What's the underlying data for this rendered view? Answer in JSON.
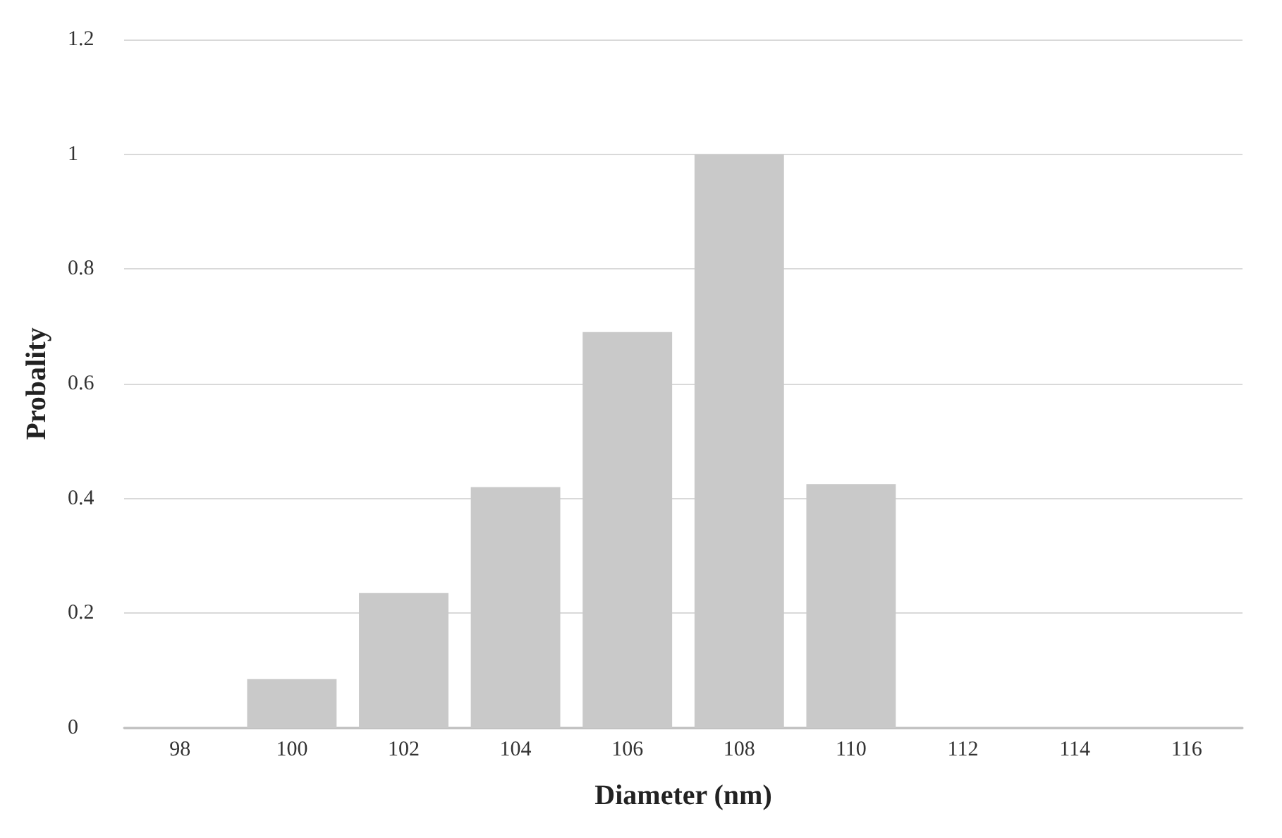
{
  "chart_data": {
    "type": "bar",
    "xlabel": "Diameter (nm)",
    "ylabel": "Probality",
    "categories": [
      "98",
      "100",
      "102",
      "104",
      "106",
      "108",
      "110",
      "112",
      "114",
      "116"
    ],
    "values": [
      0,
      0.085,
      0.235,
      0.42,
      0.69,
      1,
      0.425,
      0,
      0,
      0
    ],
    "color": "#c9c9c9",
    "ylim": [
      0,
      1.2
    ],
    "yticks": [
      0,
      0.2,
      0.4,
      0.6,
      0.8,
      1,
      1.2
    ],
    "grid": "y"
  }
}
